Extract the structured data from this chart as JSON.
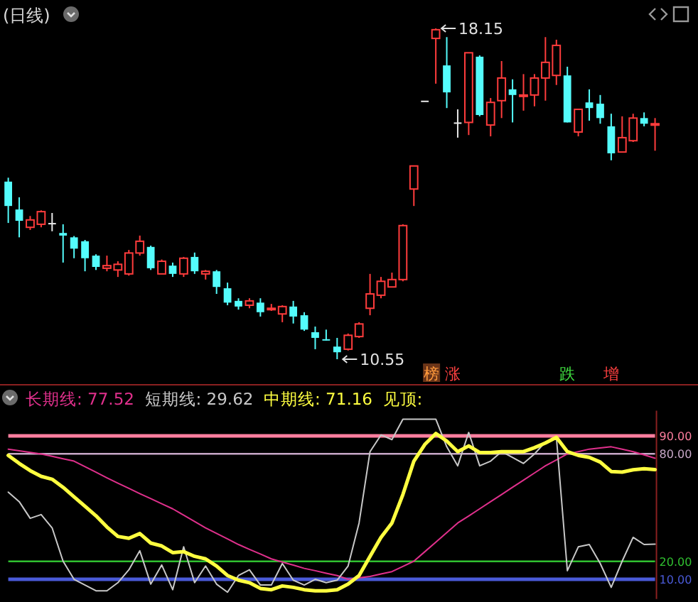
{
  "chart_data": [
    {
      "type": "candlestick",
      "title": "(日线)",
      "tick_labels": false,
      "categories": [
        null,
        null,
        null,
        null,
        null,
        null,
        null,
        null,
        null,
        null,
        null,
        null,
        null,
        null,
        null,
        null,
        null,
        null,
        null,
        null,
        null,
        null,
        null,
        null,
        null,
        null,
        null,
        null,
        null,
        null,
        null,
        null,
        null,
        null,
        null,
        null,
        null,
        null,
        null,
        null,
        null,
        null,
        null,
        null,
        null,
        null,
        null,
        null,
        null,
        null,
        null,
        null,
        null,
        null,
        null,
        null,
        null,
        null,
        null,
        null
      ],
      "ohlc": [
        [
          14.63,
          14.72,
          13.68,
          14.07
        ],
        [
          13.99,
          14.27,
          13.35,
          13.73
        ],
        [
          13.58,
          13.84,
          13.52,
          13.75
        ],
        [
          13.65,
          13.97,
          13.58,
          13.94
        ],
        [
          13.68,
          13.91,
          13.49,
          13.68
        ],
        [
          13.45,
          13.65,
          12.77,
          13.39
        ],
        [
          13.35,
          13.38,
          12.87,
          13.09
        ],
        [
          13.26,
          13.29,
          12.57,
          12.87
        ],
        [
          12.93,
          12.96,
          12.6,
          12.67
        ],
        [
          12.64,
          12.93,
          12.57,
          12.7
        ],
        [
          12.6,
          12.8,
          12.44,
          12.73
        ],
        [
          12.51,
          13.06,
          12.47,
          12.99
        ],
        [
          12.99,
          13.39,
          12.93,
          13.26
        ],
        [
          13.13,
          13.16,
          12.6,
          12.64
        ],
        [
          12.51,
          12.84,
          12.51,
          12.8
        ],
        [
          12.7,
          12.77,
          12.44,
          12.51
        ],
        [
          12.51,
          12.9,
          12.44,
          12.87
        ],
        [
          12.9,
          13.0,
          12.51,
          12.57
        ],
        [
          12.51,
          12.6,
          12.38,
          12.57
        ],
        [
          12.57,
          12.6,
          12.05,
          12.21
        ],
        [
          12.18,
          12.31,
          11.79,
          11.85
        ],
        [
          11.89,
          11.95,
          11.69,
          11.76
        ],
        [
          11.79,
          11.95,
          11.72,
          11.89
        ],
        [
          11.85,
          11.95,
          11.53,
          11.63
        ],
        [
          11.69,
          11.82,
          11.66,
          11.72
        ],
        [
          11.59,
          11.79,
          11.4,
          11.76
        ],
        [
          11.76,
          11.89,
          11.37,
          11.53
        ],
        [
          11.56,
          11.63,
          11.2,
          11.23
        ],
        [
          11.17,
          11.3,
          10.78,
          11.04
        ],
        [
          11.01,
          11.23,
          10.98,
          10.98
        ],
        [
          10.84,
          11.04,
          10.55,
          10.71
        ],
        [
          10.78,
          11.14,
          10.75,
          11.1
        ],
        [
          11.07,
          11.4,
          11.04,
          11.36
        ],
        [
          11.72,
          12.51,
          11.56,
          12.05
        ],
        [
          12.02,
          12.44,
          11.95,
          12.34
        ],
        [
          12.21,
          12.54,
          12.21,
          12.38
        ],
        [
          12.38,
          13.65,
          12.34,
          13.62
        ],
        [
          14.46,
          14.99,
          14.07,
          14.99
        ],
        [
          16.49,
          16.49,
          16.49,
          16.49
        ],
        [
          17.92,
          18.15,
          16.88,
          18.12
        ],
        [
          17.3,
          17.95,
          16.32,
          16.68
        ],
        [
          15.99,
          16.29,
          15.64,
          15.99
        ],
        [
          15.99,
          17.59,
          15.7,
          17.59
        ],
        [
          17.5,
          17.53,
          16.13,
          16.16
        ],
        [
          15.93,
          16.55,
          15.67,
          16.45
        ],
        [
          16.49,
          17.4,
          16.09,
          17.01
        ],
        [
          16.75,
          16.98,
          15.99,
          16.62
        ],
        [
          16.59,
          17.1,
          16.26,
          16.62
        ],
        [
          16.62,
          17.1,
          16.36,
          17.01
        ],
        [
          17.01,
          17.95,
          16.49,
          17.37
        ],
        [
          17.07,
          17.89,
          16.85,
          17.76
        ],
        [
          17.07,
          17.27,
          15.99,
          15.99
        ],
        [
          15.77,
          16.29,
          15.67,
          16.29
        ],
        [
          16.45,
          16.75,
          16.03,
          16.32
        ],
        [
          16.42,
          16.62,
          15.96,
          16.09
        ],
        [
          15.9,
          16.19,
          15.12,
          15.28
        ],
        [
          15.31,
          16.13,
          15.31,
          15.64
        ],
        [
          15.57,
          16.19,
          15.54,
          16.09
        ],
        [
          16.09,
          16.22,
          15.9,
          15.96
        ],
        [
          15.93,
          16.09,
          15.34,
          15.96
        ]
      ],
      "annotations": [
        "18.15",
        "10.55",
        "榜",
        "涨",
        "跌",
        "增"
      ]
    },
    {
      "type": "line",
      "tick_labels": "y",
      "ylim": [
        -1,
        104
      ],
      "yticks": [
        {
          "value": 90,
          "label": "90.00"
        },
        {
          "value": 80,
          "label": "80.00"
        },
        {
          "value": 20,
          "label": "20.00"
        },
        {
          "value": 10,
          "label": "10.00"
        }
      ],
      "categories": [
        null,
        null,
        null,
        null,
        null,
        null,
        null,
        null,
        null,
        null,
        null,
        null,
        null,
        null,
        null,
        null,
        null,
        null,
        null,
        null,
        null,
        null,
        null,
        null,
        null,
        null,
        null,
        null,
        null,
        null,
        null,
        null,
        null,
        null,
        null,
        null,
        null,
        null,
        null,
        null,
        null,
        null,
        null,
        null,
        null,
        null,
        null,
        null,
        null,
        null,
        null,
        null,
        null,
        null,
        null,
        null,
        null,
        null,
        null,
        null
      ],
      "series": [
        {
          "name": "长期线: 77.52",
          "color": "#e0308c",
          "values": [
            82.6,
            81.7,
            80.8,
            79.9,
            78.6,
            77.2,
            75.9,
            72.8,
            69.7,
            66.6,
            63.6,
            60.7,
            57.8,
            55.0,
            52.1,
            49.3,
            45.8,
            42.2,
            38.7,
            35.6,
            32.5,
            29.4,
            26.7,
            24.1,
            21.4,
            19.6,
            17.9,
            16.1,
            14.8,
            13.4,
            12.1,
            10.0,
            10.8,
            11.6,
            13.0,
            14.3,
            17.2,
            20.1,
            25.4,
            30.7,
            36.0,
            41.4,
            45.3,
            49.3,
            53.3,
            57.3,
            61.3,
            65.3,
            69.3,
            73.3,
            76.6,
            79.9,
            81.2,
            82.6,
            83.3,
            83.9,
            82.6,
            81.2,
            79.4,
            77.52
          ]
        },
        {
          "name": "短期线: 29.62",
          "color": "#c8c8c8",
          "values": [
            58.6,
            53.3,
            44.0,
            46.1,
            38.7,
            20.1,
            10.0,
            6.8,
            3.6,
            3.6,
            8.1,
            15.3,
            25.9,
            7.3,
            18.0,
            4.2,
            28.1,
            8.1,
            17.4,
            7.3,
            2.8,
            12.1,
            15.3,
            6.8,
            6.8,
            18.8,
            9.5,
            6.8,
            10.0,
            8.1,
            9.5,
            17.4,
            41.4,
            81.2,
            90.5,
            87.9,
            99.3,
            99.3,
            99.3,
            99.3,
            83.9,
            73.3,
            91.9,
            73.3,
            75.9,
            81.2,
            78.0,
            74.6,
            79.9,
            86.6,
            89.2,
            14.8,
            28.1,
            29.4,
            18.8,
            5.5,
            20.1,
            33.4,
            29.4,
            29.62
          ]
        },
        {
          "name": "中期线: 71.16",
          "color": "#ffff40",
          "values": [
            79.1,
            74.6,
            70.6,
            67.4,
            65.8,
            61.3,
            56.0,
            50.7,
            45.4,
            39.2,
            33.9,
            32.9,
            35.5,
            30.2,
            28.6,
            24.9,
            25.4,
            22.8,
            21.4,
            17.4,
            12.1,
            9.5,
            8.1,
            4.9,
            4.2,
            6.3,
            5.5,
            4.2,
            3.6,
            3.6,
            4.2,
            7.3,
            12.1,
            22.8,
            33.4,
            41.4,
            57.3,
            75.9,
            85.2,
            91.3,
            87.1,
            81.2,
            84.4,
            80.7,
            80.7,
            81.2,
            81.2,
            81.2,
            83.4,
            86.0,
            89.2,
            81.2,
            79.1,
            78.0,
            75.4,
            70.1,
            69.8,
            71.1,
            71.7,
            71.16
          ]
        }
      ],
      "ref_lines": [
        {
          "axis": "y",
          "value": 90,
          "color": "#ff7f9f"
        },
        {
          "axis": "y",
          "value": 80,
          "color": "#c8a8c8"
        },
        {
          "axis": "y",
          "value": 20,
          "color": "#30c030"
        },
        {
          "axis": "y",
          "value": 10,
          "color": "#4a5ad8"
        }
      ],
      "annotations": [
        "见顶:"
      ]
    }
  ]
}
